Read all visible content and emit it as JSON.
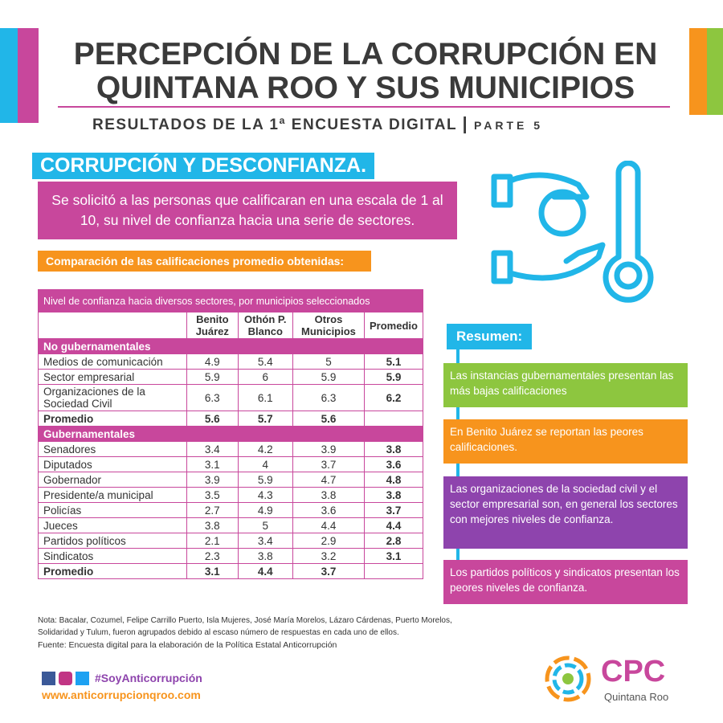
{
  "header": {
    "title_line1": "PERCEPCIÓN DE LA CORRUPCIÓN EN",
    "title_line2": "QUINTANA ROO Y SUS MUNICIPIOS",
    "subtitle": "RESULTADOS DE LA 1ª ENCUESTA DIGITAL",
    "part": "PARTE 5"
  },
  "section_title": "CORRUPCIÓN Y DESCONFIANZA.",
  "intro": "Se solicitó a las personas que calificaran en una escala de 1 al 10, su nivel de confianza hacia una serie de sectores.",
  "comparison_label": "Comparación de las calificaciones promedio obtenidas:",
  "table": {
    "caption": "Nivel de confianza hacia diversos sectores, por municipios seleccionados",
    "columns": [
      "Benito Juárez",
      "Othón P. Blanco",
      "Otros Municipios",
      "Promedio"
    ],
    "groups": [
      {
        "title": "No gubernamentales",
        "rows": [
          [
            "Medios de comunicación",
            "4.9",
            "5.4",
            "5",
            "5.1"
          ],
          [
            "Sector empresarial",
            "5.9",
            "6",
            "5.9",
            "5.9"
          ],
          [
            "Organizaciones de la Sociedad Civil",
            "6.3",
            "6.1",
            "6.3",
            "6.2"
          ]
        ],
        "average": [
          "Promedio",
          "5.6",
          "5.7",
          "5.6",
          null
        ]
      },
      {
        "title": "Gubernamentales",
        "rows": [
          [
            "Senadores",
            "3.4",
            "4.2",
            "3.9",
            "3.8"
          ],
          [
            "Diputados",
            "3.1",
            "4",
            "3.7",
            "3.6"
          ],
          [
            "Gobernador",
            "3.9",
            "5.9",
            "4.7",
            "4.8"
          ],
          [
            "Presidente/a municipal",
            "3.5",
            "4.3",
            "3.8",
            "3.8"
          ],
          [
            "Policías",
            "2.7",
            "4.9",
            "3.6",
            "3.7"
          ],
          [
            "Jueces",
            "3.8",
            "5",
            "4.4",
            "4.4"
          ],
          [
            "Partidos políticos",
            "2.1",
            "3.4",
            "2.9",
            "2.8"
          ],
          [
            "Sindicatos",
            "2.3",
            "3.8",
            "3.2",
            "3.1"
          ]
        ],
        "average": [
          "Promedio",
          "3.1",
          "4.4",
          "3.7",
          null
        ]
      }
    ]
  },
  "note": "Nota: Bacalar, Cozumel, Felipe Carrillo Puerto, Isla Mujeres, José María Morelos, Lázaro Cárdenas, Puerto Morelos, Solidaridad y Tulum, fueron agrupados debido al escaso número de respuestas en cada uno de ellos.",
  "source": "Fuente: Encuesta digital para la elaboración de la Política Estatal Anticorrupción",
  "summary": {
    "title": "Resumen:",
    "items": [
      "Las instancias gubernamentales presentan las más bajas calificaciones",
      "En Benito Juárez se reportan las peores calificaciones.",
      "Las organizaciones de la sociedad civil y el sector empresarial son, en general los sectores con mejores niveles de confianza.",
      "Los partidos políticos y sindicatos presentan los peores niveles de confianza."
    ]
  },
  "footer": {
    "hashtag": "#SoyAnticorrupción",
    "url": "www.anticorrupcionqroo.com",
    "logo": "CPC",
    "logo_sub": "Quintana Roo"
  }
}
